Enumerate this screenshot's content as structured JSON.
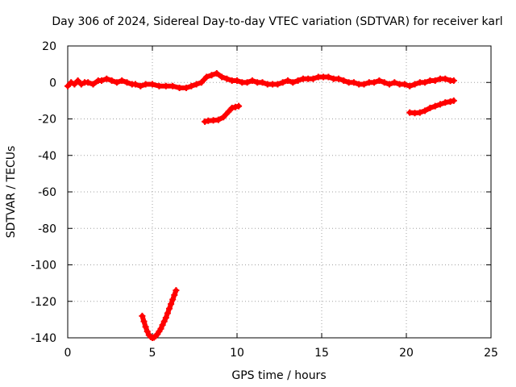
{
  "chart_data": {
    "type": "scatter",
    "title": "Day 306 of 2024, Sidereal Day-to-day VTEC variation (SDTVAR) for receiver karl",
    "xlabel": "GPS time / hours",
    "ylabel": "SDTVAR / TECUs",
    "xlim": [
      0,
      25
    ],
    "ylim": [
      -140,
      20
    ],
    "xticks": [
      "0",
      "5",
      "10",
      "15",
      "20",
      "25"
    ],
    "yticks": [
      "20",
      "0",
      "-20",
      "-40",
      "-60",
      "-80",
      "-100",
      "-120",
      "-140"
    ],
    "grid": true,
    "marker_color": "#ff0000",
    "series": [
      {
        "x": [
          0.0,
          0.2,
          0.4,
          0.6,
          0.8,
          1.0,
          1.2,
          1.5,
          1.8,
          2.0,
          2.3,
          2.6,
          2.9,
          3.2,
          3.5,
          3.8,
          4.0,
          4.3,
          4.6,
          5.0,
          5.4,
          5.8,
          6.2,
          6.6,
          7.0,
          7.3,
          7.6,
          7.9,
          8.2,
          8.5,
          8.8,
          9.1,
          9.4,
          9.7,
          10.0,
          10.3,
          10.6,
          10.9,
          11.2,
          11.5,
          11.8,
          12.1,
          12.4,
          12.7,
          13.0,
          13.3,
          13.6,
          13.9,
          14.2,
          14.5,
          14.8,
          15.1,
          15.4,
          15.7,
          16.0,
          16.3,
          16.6,
          16.9,
          17.2,
          17.5,
          17.8,
          18.1,
          18.4,
          18.7,
          19.0,
          19.3,
          19.6,
          19.9,
          20.2,
          20.5,
          20.8,
          21.1,
          21.4,
          21.7,
          22.0,
          22.3,
          22.6,
          22.8
        ],
        "y": [
          -2,
          0,
          -1,
          1,
          -1,
          0,
          0,
          -1,
          1,
          1,
          2,
          1,
          0,
          1,
          0,
          -1,
          -1,
          -2,
          -1,
          -1,
          -2,
          -2,
          -2,
          -3,
          -3,
          -2,
          -1,
          0,
          3,
          4,
          5,
          3,
          2,
          1,
          1,
          0,
          0,
          1,
          0,
          0,
          -1,
          -1,
          -1,
          0,
          1,
          0,
          1,
          2,
          2,
          2,
          3,
          3,
          3,
          2,
          2,
          1,
          0,
          0,
          -1,
          -1,
          0,
          0,
          1,
          0,
          -1,
          0,
          -1,
          -1,
          -2,
          -1,
          0,
          0,
          1,
          1,
          2,
          2,
          1,
          1
        ]
      },
      {
        "x": [
          8.1,
          8.3,
          8.6,
          8.9,
          9.2,
          9.5,
          9.7,
          9.9,
          10.1
        ],
        "y": [
          -21.5,
          -21,
          -20.8,
          -20.5,
          -19,
          -16,
          -14,
          -13.5,
          -13
        ]
      },
      {
        "x": [
          20.2,
          20.5,
          20.8,
          21.1,
          21.4,
          21.7,
          22.0,
          22.3,
          22.6,
          22.8
        ],
        "y": [
          -16.5,
          -16.8,
          -16.5,
          -15.5,
          -14,
          -13,
          -12,
          -11,
          -10.5,
          -10
        ]
      },
      {
        "x": [
          4.4,
          4.5,
          4.6,
          4.7,
          4.8,
          4.9,
          5.0,
          5.1,
          5.2,
          5.3,
          5.4,
          5.5,
          5.6,
          5.7,
          5.8,
          5.9,
          6.0,
          6.1,
          6.2,
          6.3,
          6.4
        ],
        "y": [
          -128,
          -131,
          -134,
          -136.5,
          -138.5,
          -139.5,
          -140,
          -139.8,
          -139,
          -138,
          -136.5,
          -135,
          -133,
          -131,
          -129,
          -126.5,
          -124,
          -121.5,
          -119,
          -116.5,
          -114
        ]
      }
    ]
  }
}
